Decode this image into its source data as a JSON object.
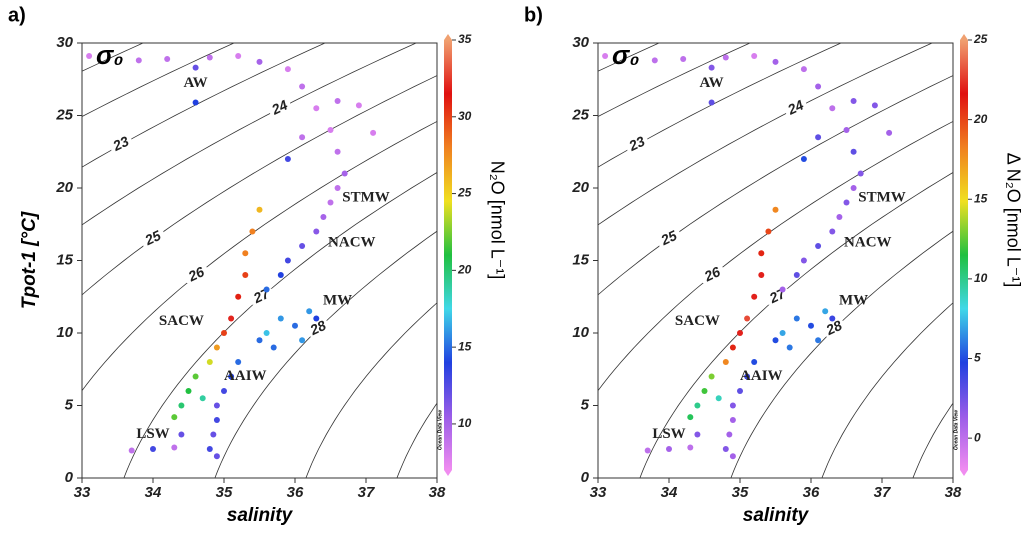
{
  "chart_data": [
    {
      "type": "scatter",
      "panel": "a)",
      "title": "σ₀",
      "xlabel": "salinity",
      "ylabel": "Tpot-1 [°C]",
      "colorbar_label": "N₂O [nmol L⁻¹]",
      "watermark": "Ocean Data View",
      "xlim": [
        33,
        38
      ],
      "xticks": [
        33,
        34,
        35,
        36,
        37,
        38
      ],
      "ylim": [
        0,
        30
      ],
      "yticks": [
        0,
        5,
        10,
        15,
        20,
        25,
        30
      ],
      "clim": [
        7,
        35
      ],
      "cticks": [
        10,
        15,
        20,
        25,
        30,
        35
      ],
      "colormap": [
        "#f08cf0",
        "#9a5ce8",
        "#2040e0",
        "#40d8e8",
        "#20c040",
        "#f0e020",
        "#f08020",
        "#e01010",
        "#f0a070"
      ],
      "isopycnals": [
        21,
        22,
        23,
        24,
        25,
        26,
        27,
        28,
        29,
        30
      ],
      "isopycnal_labels": [
        23,
        24,
        25,
        26,
        27,
        28
      ],
      "annotations": [
        "AW",
        "STMW",
        "NACW",
        "MW",
        "SACW",
        "AAIW",
        "LSW"
      ],
      "x": [
        33.1,
        33.8,
        34.2,
        34.6,
        34.8,
        35.2,
        35.5,
        34.6,
        35.9,
        36.1,
        36.3,
        36.6,
        36.9,
        36.1,
        36.5,
        35.9,
        36.6,
        36.7,
        37.1,
        36.6,
        36.5,
        36.4,
        36.3,
        36.1,
        35.9,
        35.8,
        35.6,
        35.5,
        35.4,
        35.3,
        35.3,
        35.2,
        35.1,
        35.0,
        34.9,
        34.8,
        34.6,
        34.5,
        34.4,
        34.3,
        34.7,
        35.1,
        35.0,
        34.9,
        34.9,
        34.85,
        34.8,
        34.9,
        35.2,
        35.5,
        35.8,
        36.0,
        36.2,
        36.3,
        36.1,
        35.7,
        35.6,
        33.7,
        34.0,
        34.3,
        34.4
      ],
      "y": [
        29.1,
        28.8,
        28.9,
        28.3,
        29.0,
        29.1,
        28.7,
        25.9,
        28.2,
        27.0,
        25.5,
        26.0,
        25.7,
        23.5,
        24.0,
        22.0,
        22.5,
        21.0,
        23.8,
        20.0,
        19.0,
        18.0,
        17.0,
        16.0,
        15.0,
        14.0,
        13.0,
        18.5,
        17.0,
        15.5,
        14.0,
        12.5,
        11.0,
        10.0,
        9.0,
        8.0,
        7.0,
        6.0,
        5.0,
        4.2,
        5.5,
        7.0,
        6.0,
        5.0,
        4.0,
        3.0,
        2.0,
        1.5,
        8.0,
        9.5,
        11.0,
        10.5,
        11.5,
        11.0,
        9.5,
        9.0,
        10.0,
        1.9,
        2.0,
        2.1,
        3.0
      ],
      "c": [
        8,
        9,
        9,
        12,
        9,
        8,
        10,
        14,
        8,
        9,
        8,
        9,
        8,
        9,
        8,
        13,
        9,
        10,
        8,
        9,
        9,
        10,
        11,
        12,
        13,
        14,
        15,
        26,
        28,
        28,
        30,
        31,
        32,
        30,
        27,
        24,
        22,
        21,
        20,
        22,
        19,
        14,
        13,
        12,
        13,
        12,
        13,
        12,
        15,
        15,
        16,
        15,
        16,
        14,
        16,
        15,
        17,
        9,
        13,
        9,
        12
      ]
    },
    {
      "type": "scatter",
      "panel": "b)",
      "title": "σ₀",
      "xlabel": "salinity",
      "colorbar_label": "Δ N₂O [nmol L⁻¹]",
      "watermark": "Ocean Data View",
      "xlim": [
        33,
        38
      ],
      "xticks": [
        33,
        34,
        35,
        36,
        37,
        38
      ],
      "ylim": [
        0,
        30
      ],
      "yticks": [
        0,
        5,
        10,
        15,
        20,
        25,
        30
      ],
      "clim": [
        -2,
        25
      ],
      "cticks": [
        0,
        5,
        10,
        15,
        20,
        25
      ],
      "colormap": [
        "#f08cf0",
        "#9a5ce8",
        "#2040e0",
        "#40d8e8",
        "#20c040",
        "#f0e020",
        "#f08020",
        "#e01010",
        "#f0a070"
      ],
      "isopycnals": [
        21,
        22,
        23,
        24,
        25,
        26,
        27,
        28,
        29,
        30
      ],
      "isopycnal_labels": [
        23,
        24,
        25,
        26,
        27,
        28
      ],
      "annotations": [
        "AW",
        "STMW",
        "NACW",
        "MW",
        "SACW",
        "AAIW",
        "LSW"
      ],
      "x": [
        33.1,
        33.8,
        34.2,
        34.6,
        34.8,
        35.2,
        35.5,
        34.6,
        35.9,
        36.1,
        36.3,
        36.6,
        36.9,
        36.1,
        36.5,
        35.9,
        36.6,
        36.7,
        37.1,
        36.6,
        36.5,
        36.4,
        36.3,
        36.1,
        35.9,
        35.8,
        35.6,
        35.5,
        35.4,
        35.3,
        35.3,
        35.2,
        35.1,
        35.0,
        34.9,
        34.8,
        34.6,
        34.5,
        34.4,
        34.3,
        34.7,
        35.1,
        35.0,
        34.9,
        34.9,
        34.85,
        34.8,
        34.9,
        35.2,
        35.5,
        35.8,
        36.0,
        36.2,
        36.3,
        36.1,
        35.7,
        35.6,
        33.7,
        34.0,
        34.3,
        34.4
      ],
      "y": [
        29.1,
        28.8,
        28.9,
        28.3,
        29.0,
        29.1,
        28.7,
        25.9,
        28.2,
        27.0,
        25.5,
        26.0,
        25.7,
        23.5,
        24.0,
        22.0,
        22.5,
        21.0,
        23.8,
        20.0,
        19.0,
        18.0,
        17.0,
        16.0,
        15.0,
        14.0,
        13.0,
        18.5,
        17.0,
        15.5,
        14.0,
        12.5,
        11.0,
        10.0,
        9.0,
        8.0,
        7.0,
        6.0,
        5.0,
        4.2,
        5.5,
        7.0,
        6.0,
        5.0,
        4.0,
        3.0,
        2.0,
        1.5,
        8.0,
        9.5,
        11.0,
        10.5,
        11.5,
        11.0,
        9.5,
        9.0,
        10.0,
        1.9,
        2.0,
        2.1,
        3.0
      ],
      "c": [
        -1,
        0,
        0,
        2,
        0,
        -1,
        1,
        3,
        0,
        1,
        0,
        2,
        2,
        3,
        1,
        5,
        3,
        2,
        1,
        1,
        2,
        1,
        2,
        3,
        2,
        3,
        1,
        18,
        20,
        21,
        22,
        22,
        23,
        22,
        21,
        18,
        13,
        12,
        10,
        11,
        9,
        4,
        3,
        2,
        1,
        1,
        2,
        1,
        5,
        5,
        6,
        5,
        7,
        4,
        6,
        6,
        7,
        0,
        1,
        0,
        2
      ]
    }
  ]
}
